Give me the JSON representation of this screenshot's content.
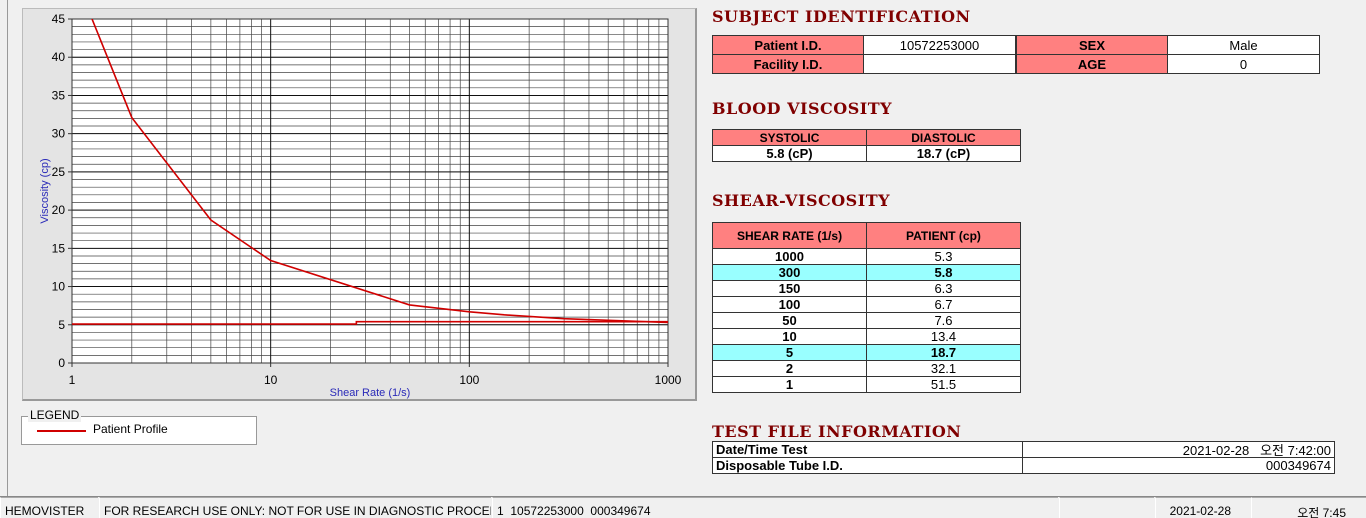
{
  "chart_data": {
    "type": "line",
    "xlabel": "Shear Rate (1/s)",
    "ylabel": "Viscosity (cp)",
    "xscale": "log",
    "xlim": [
      1,
      1000
    ],
    "ylim": [
      0,
      45
    ],
    "xticks": [
      1,
      10,
      100,
      1000
    ],
    "yticks": [
      0,
      5,
      10,
      15,
      20,
      25,
      30,
      35,
      40,
      45
    ],
    "grid": true,
    "legend_title": "LEGEND",
    "series": [
      {
        "name": "Patient Profile",
        "color": "#d00000",
        "x": [
          1,
          2,
          5,
          10,
          50,
          100,
          150,
          300,
          1000
        ],
        "values": [
          51.5,
          32.1,
          18.7,
          13.4,
          7.6,
          6.7,
          6.3,
          5.8,
          5.3
        ]
      },
      {
        "color": "#d00000",
        "x": [
          1,
          27,
          27,
          1000
        ],
        "values": [
          5.1,
          5.1,
          5.4,
          5.4
        ]
      }
    ]
  },
  "subject": {
    "title": "SUBJECT IDENTIFICATION",
    "fields": [
      {
        "label": "Patient I.D.",
        "value": "10572253000"
      },
      {
        "label": "SEX",
        "value": "Male"
      },
      {
        "label": "Facility I.D."
      },
      {
        "label": "AGE",
        "value": 0
      }
    ]
  },
  "blood": {
    "title": "BLOOD VISCOSITY",
    "headers": [
      "SYSTOLIC",
      "DIASTOLIC"
    ],
    "values": [
      "5.8 (cP)",
      "18.7 (cP)"
    ]
  },
  "shear": {
    "title": "SHEAR-VISCOSITY",
    "headers": [
      "SHEAR RATE (1/s)",
      "PATIENT (cp)"
    ],
    "rows": [
      {
        "rate": 1000,
        "patient": 5.3
      },
      {
        "rate": 300,
        "patient": 5.8,
        "highlighted": true
      },
      {
        "rate": 150,
        "patient": 6.3
      },
      {
        "rate": 100,
        "patient": 6.7
      },
      {
        "rate": 50,
        "patient": 7.6
      },
      {
        "rate": 10,
        "patient": 13.4
      },
      {
        "rate": 5,
        "patient": 18.7,
        "highlighted": true
      },
      {
        "rate": 2,
        "patient": 32.1
      },
      {
        "rate": 1,
        "patient": 51.5
      }
    ]
  },
  "test": {
    "title": "TEST FILE INFORMATION",
    "rows": [
      {
        "label": "Date/Time Test",
        "value": "2021-02-28   오전 7:42:00"
      },
      {
        "label": "Disposable Tube I.D.",
        "value": "000349674"
      }
    ]
  },
  "status": [
    "HEMOVISTER",
    "FOR RESEARCH USE ONLY: NOT FOR USE IN DIAGNOSTIC PROCEDURES",
    "1  10572253000  000349674",
    "2021-02-28",
    "오전 7:45"
  ]
}
